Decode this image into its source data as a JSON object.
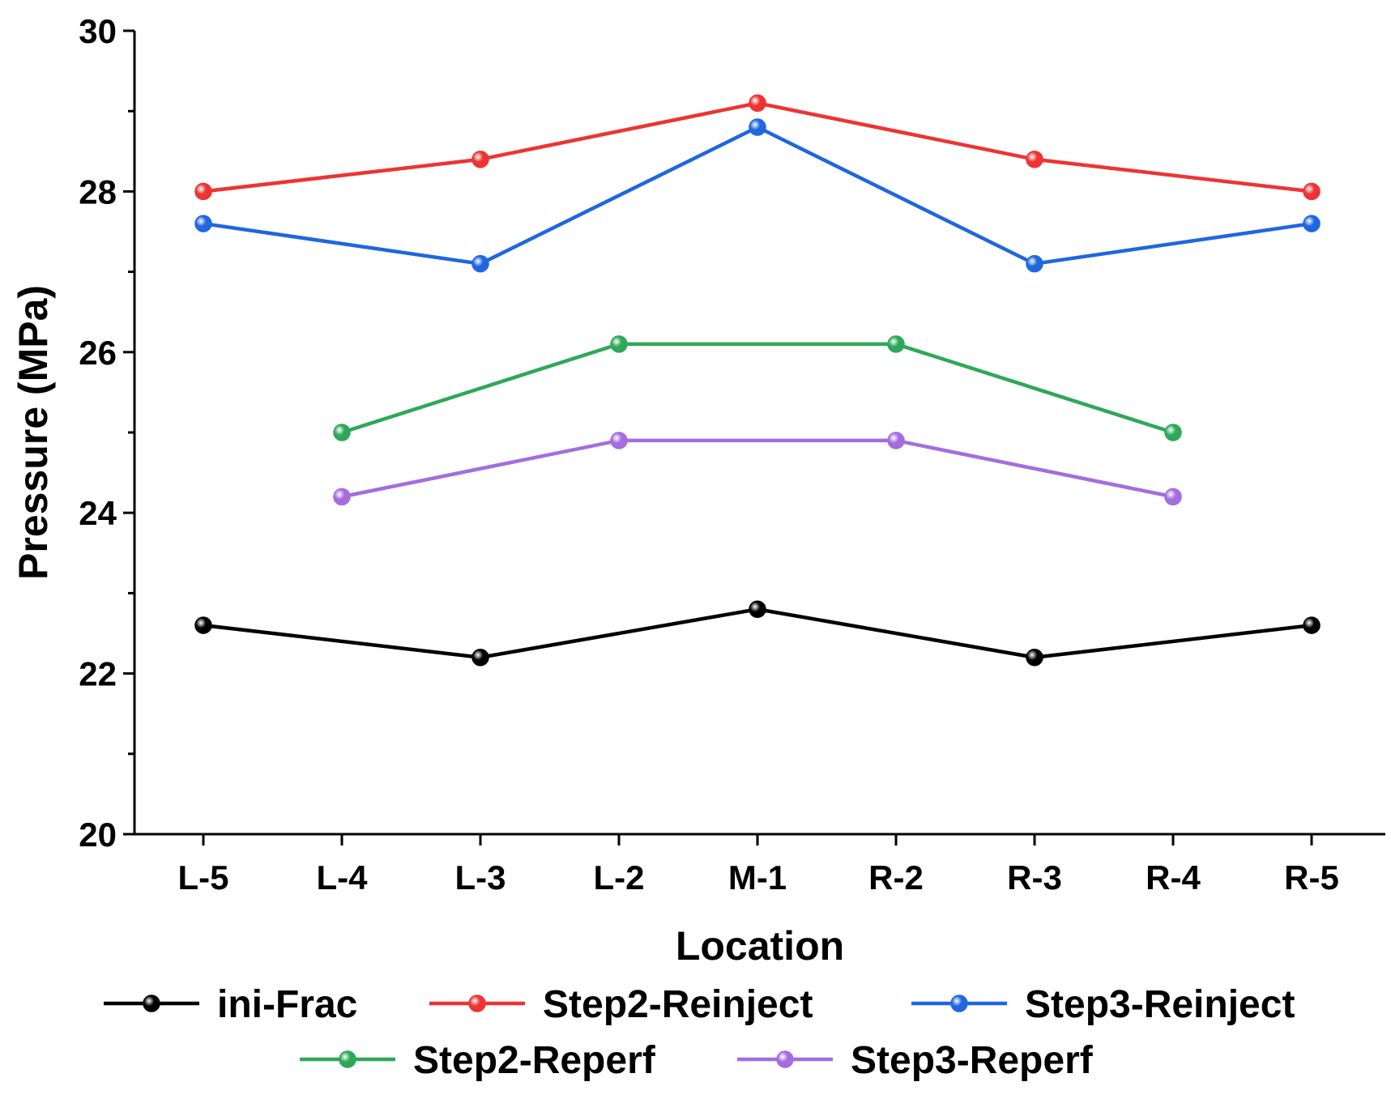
{
  "chart_data": {
    "type": "line",
    "title": "",
    "xlabel": "Location",
    "ylabel": "Pressure (MPa)",
    "categories": [
      "L-5",
      "L-4",
      "L-3",
      "L-2",
      "M-1",
      "R-2",
      "R-3",
      "R-4",
      "R-5"
    ],
    "ylim": [
      20,
      30
    ],
    "yticks": [
      20,
      22,
      24,
      26,
      28,
      30
    ],
    "grid": false,
    "legend_position": "bottom",
    "series": [
      {
        "name": "ini-Frac",
        "color": "#000000",
        "values": [
          22.6,
          null,
          22.2,
          null,
          22.8,
          null,
          22.2,
          null,
          22.6
        ]
      },
      {
        "name": "Step2-Reinject",
        "color": "#ee3333",
        "values": [
          28.0,
          null,
          28.4,
          null,
          29.1,
          null,
          28.4,
          null,
          28.0
        ]
      },
      {
        "name": "Step3-Reinject",
        "color": "#1f66e0",
        "values": [
          27.6,
          null,
          27.1,
          null,
          28.8,
          null,
          27.1,
          null,
          27.6
        ]
      },
      {
        "name": "Step2-Reperf",
        "color": "#2ea858",
        "values": [
          null,
          25.0,
          null,
          26.1,
          null,
          26.1,
          null,
          25.0,
          null
        ]
      },
      {
        "name": "Step3-Reperf",
        "color": "#a56ce0",
        "values": [
          null,
          24.2,
          null,
          24.9,
          null,
          24.9,
          null,
          24.2,
          null
        ]
      }
    ]
  }
}
